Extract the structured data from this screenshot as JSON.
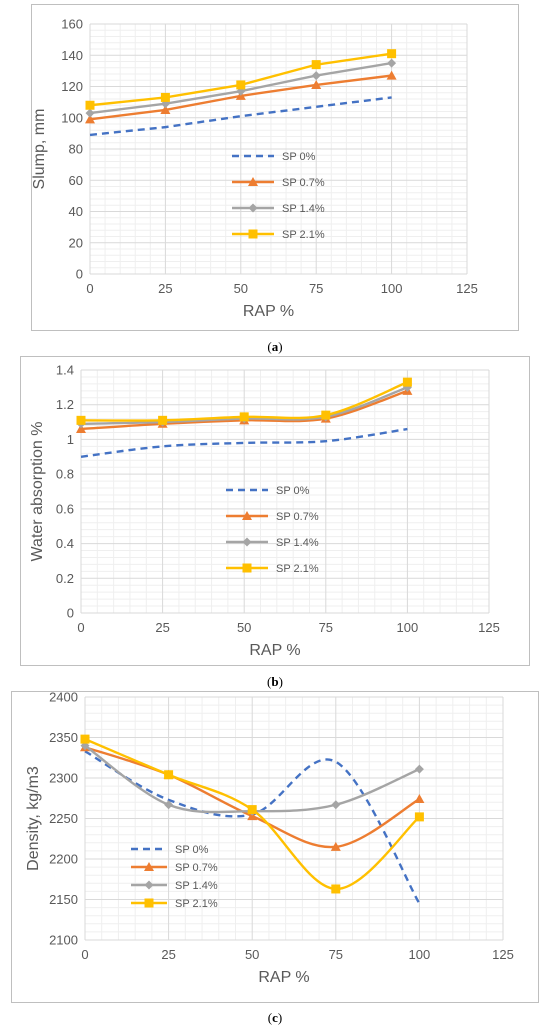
{
  "chart_data": [
    {
      "type": "line",
      "caption_letter": "a",
      "xlabel": "RAP %",
      "ylabel": "Slump, mm",
      "xlim": [
        0,
        125
      ],
      "ylim": [
        0,
        160
      ],
      "xticks": [
        0,
        25,
        50,
        75,
        100,
        125
      ],
      "yticks": [
        0,
        20,
        40,
        60,
        80,
        100,
        120,
        140,
        160
      ],
      "grid": true,
      "legend_position": "center",
      "smooth": false,
      "series": [
        {
          "name": "SP 0%",
          "color": "#4472C4",
          "dash": true,
          "marker": "none",
          "x": [
            0,
            25,
            50,
            75,
            100
          ],
          "y": [
            89,
            94,
            101,
            107,
            113
          ]
        },
        {
          "name": "SP 0.7%",
          "color": "#ED7D31",
          "dash": false,
          "marker": "triangle",
          "x": [
            0,
            25,
            50,
            75,
            100
          ],
          "y": [
            99,
            105,
            114,
            121,
            127
          ]
        },
        {
          "name": "SP 1.4%",
          "color": "#A5A5A5",
          "dash": false,
          "marker": "diamond",
          "x": [
            0,
            25,
            50,
            75,
            100
          ],
          "y": [
            103,
            109,
            117,
            127,
            135
          ]
        },
        {
          "name": "SP 2.1%",
          "color": "#FFC000",
          "dash": false,
          "marker": "square",
          "x": [
            0,
            25,
            50,
            75,
            100
          ],
          "y": [
            108,
            113,
            121,
            134,
            141
          ]
        }
      ]
    },
    {
      "type": "line",
      "caption_letter": "b",
      "xlabel": "RAP %",
      "ylabel": "Water absorption %",
      "xlim": [
        0,
        125
      ],
      "ylim": [
        0,
        1.4
      ],
      "xticks": [
        0,
        25,
        50,
        75,
        100,
        125
      ],
      "yticks": [
        "0",
        "0.2",
        "0.4",
        "0.6",
        "0.8",
        "1",
        "1.2",
        "1.4"
      ],
      "grid": true,
      "legend_position": "center",
      "smooth": true,
      "series": [
        {
          "name": "SP 0%",
          "color": "#4472C4",
          "dash": true,
          "marker": "none",
          "x": [
            0,
            25,
            50,
            75,
            100
          ],
          "y": [
            0.9,
            0.96,
            0.98,
            0.99,
            1.06
          ]
        },
        {
          "name": "SP 0.7%",
          "color": "#ED7D31",
          "dash": false,
          "marker": "triangle",
          "x": [
            0,
            25,
            50,
            75,
            100
          ],
          "y": [
            1.06,
            1.09,
            1.11,
            1.12,
            1.28
          ]
        },
        {
          "name": "SP 1.4%",
          "color": "#A5A5A5",
          "dash": false,
          "marker": "diamond",
          "x": [
            0,
            25,
            50,
            75,
            100
          ],
          "y": [
            1.09,
            1.1,
            1.12,
            1.13,
            1.3
          ]
        },
        {
          "name": "SP 2.1%",
          "color": "#FFC000",
          "dash": false,
          "marker": "square",
          "x": [
            0,
            25,
            50,
            75,
            100
          ],
          "y": [
            1.11,
            1.11,
            1.13,
            1.14,
            1.33
          ]
        }
      ]
    },
    {
      "type": "line",
      "caption_letter": "c",
      "xlabel": "RAP %",
      "ylabel": "Density, kg/m3",
      "xlim": [
        0,
        125
      ],
      "ylim": [
        2100,
        2400
      ],
      "xticks": [
        0,
        25,
        50,
        75,
        100,
        125
      ],
      "yticks": [
        2100,
        2150,
        2200,
        2250,
        2300,
        2350,
        2400
      ],
      "grid": true,
      "legend_position": "left",
      "smooth": true,
      "series": [
        {
          "name": "SP 0%",
          "color": "#4472C4",
          "dash": true,
          "marker": "none",
          "x": [
            0,
            25,
            50,
            75,
            100
          ],
          "y": [
            2333,
            2273,
            2255,
            2320,
            2145
          ]
        },
        {
          "name": "SP 0.7%",
          "color": "#ED7D31",
          "dash": false,
          "marker": "triangle",
          "x": [
            0,
            25,
            50,
            75,
            100
          ],
          "y": [
            2338,
            2304,
            2253,
            2215,
            2274
          ]
        },
        {
          "name": "SP 1.4%",
          "color": "#A5A5A5",
          "dash": false,
          "marker": "diamond",
          "x": [
            0,
            25,
            50,
            75,
            100
          ],
          "y": [
            2340,
            2267,
            2259,
            2267,
            2311
          ]
        },
        {
          "name": "SP 2.1%",
          "color": "#FFC000",
          "dash": false,
          "marker": "square",
          "x": [
            0,
            25,
            50,
            75,
            100
          ],
          "y": [
            2348,
            2304,
            2261,
            2163,
            2252
          ]
        }
      ]
    }
  ]
}
